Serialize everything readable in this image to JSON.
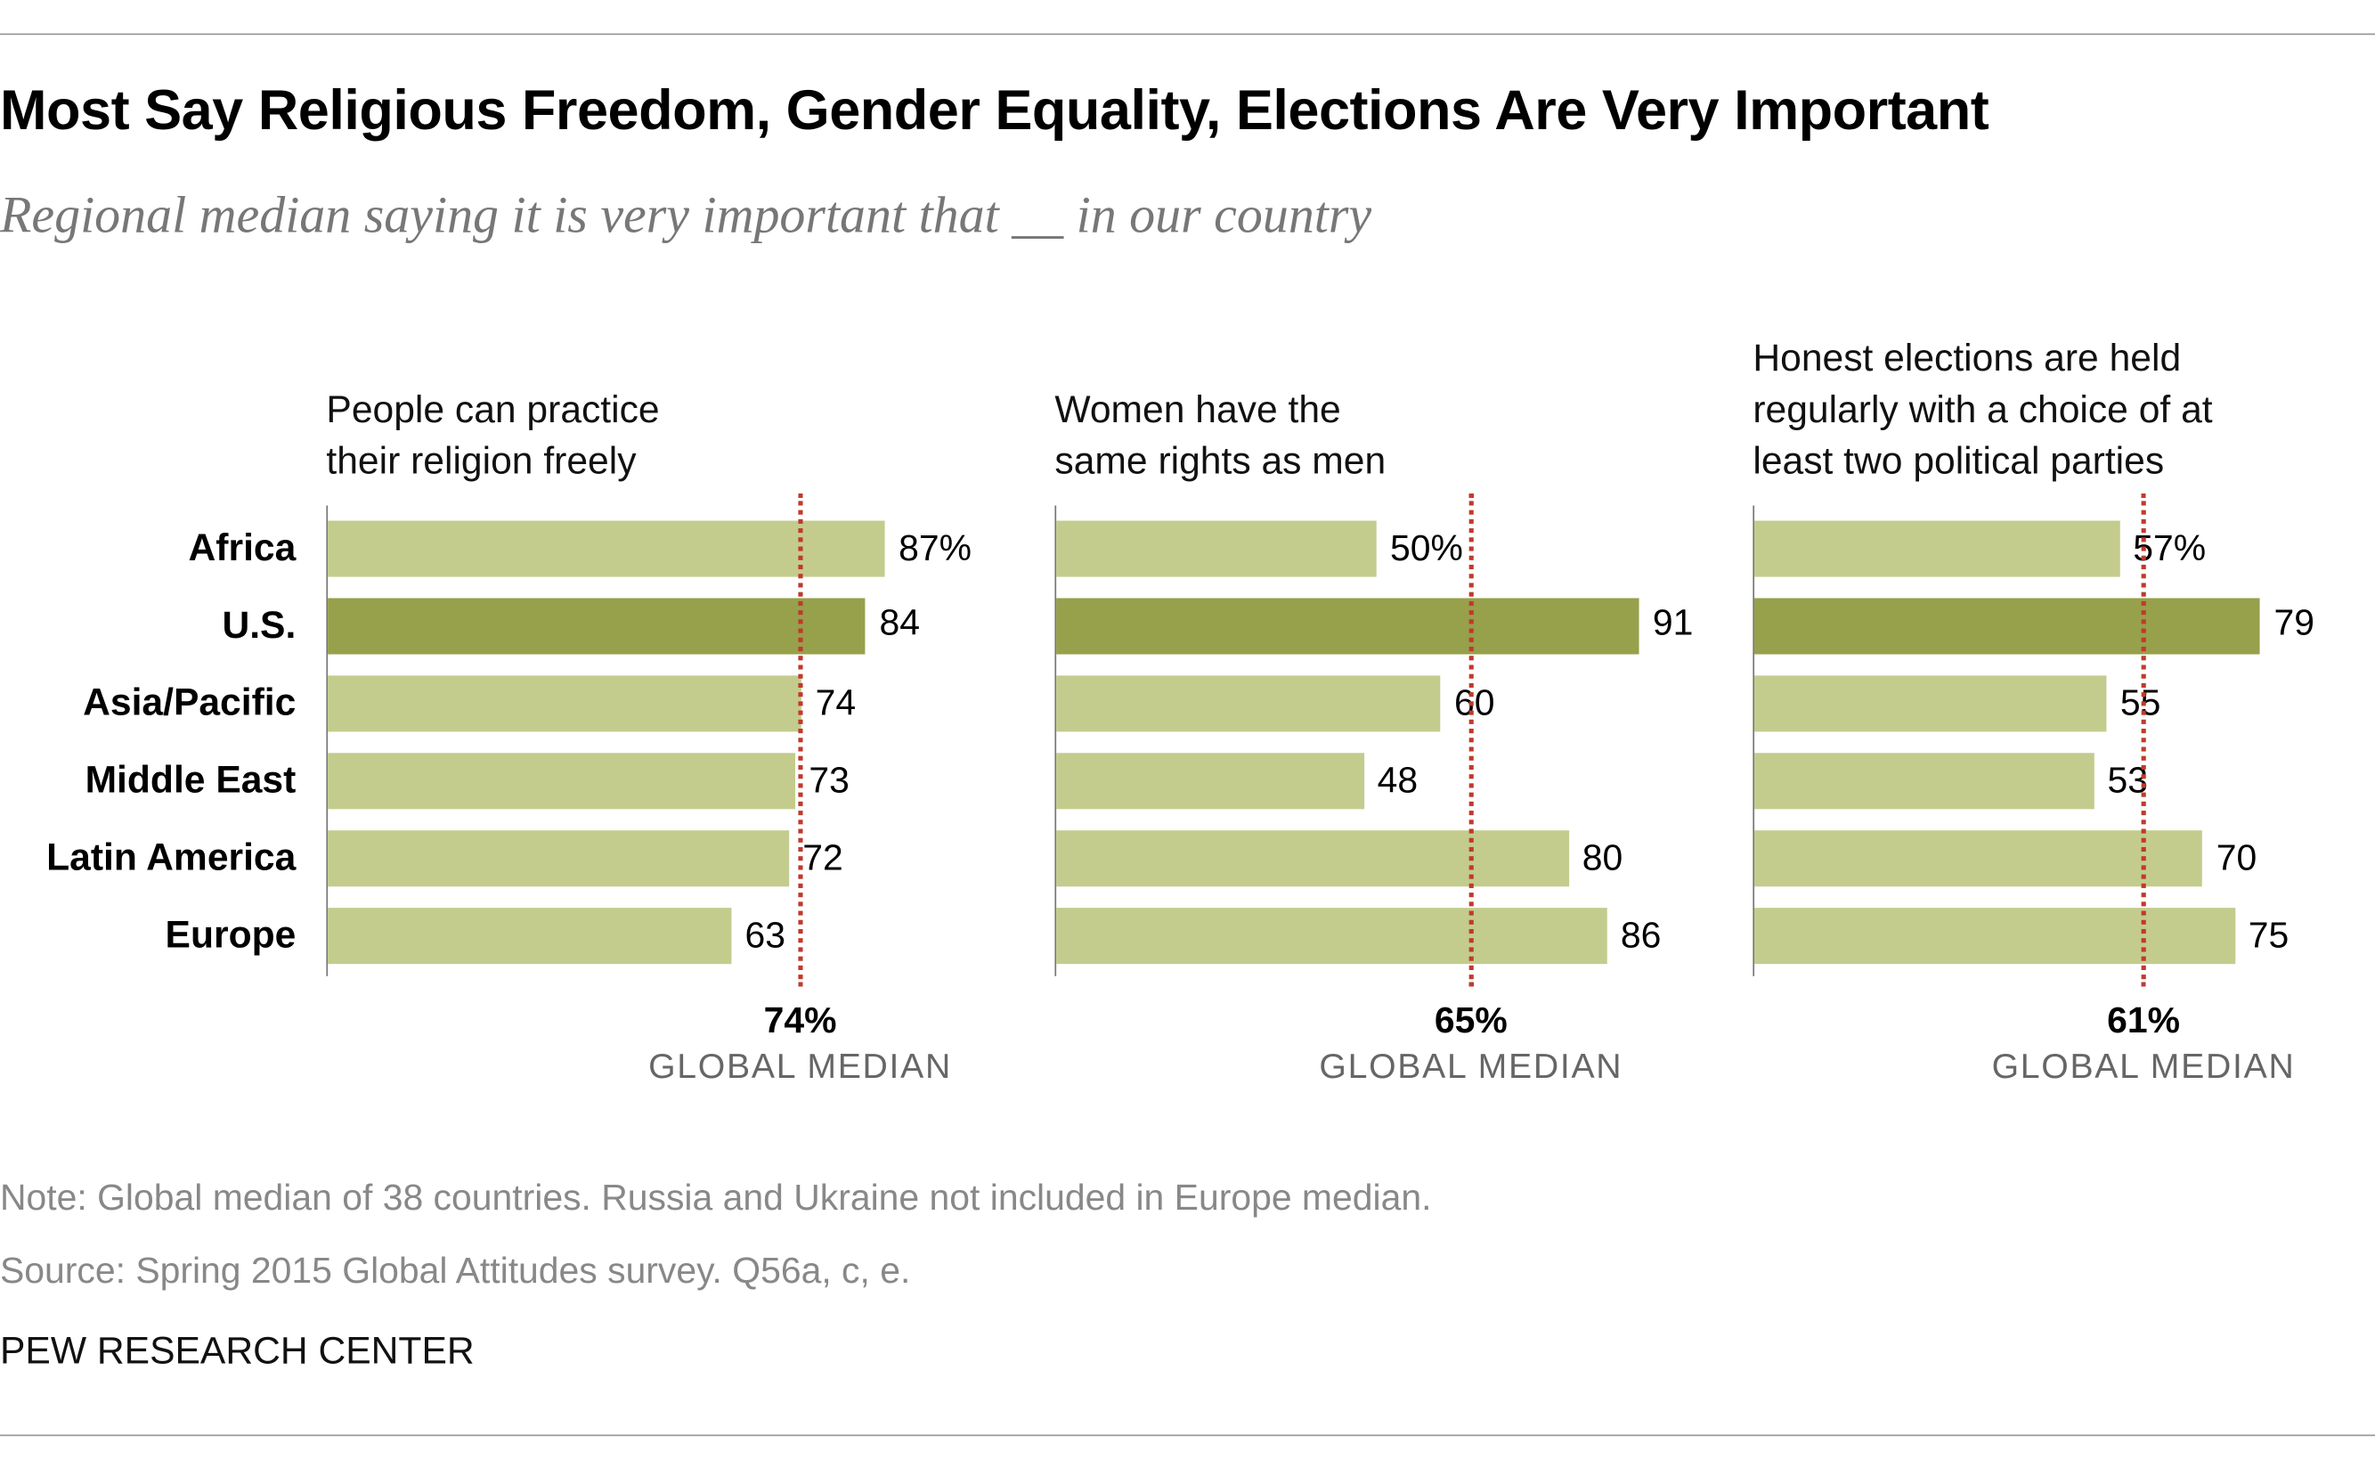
{
  "title": "Most Say Religious Freedom, Gender Equality, Elections Are Very Important",
  "subtitle": "Regional median saying it is very important that __ in our country",
  "colors": {
    "bar": "#c3cc8d",
    "highlight_bar": "#97a04b",
    "median_line": "#c0392b"
  },
  "chart_data": {
    "type": "bar",
    "orientation": "horizontal",
    "categories": [
      "Africa",
      "U.S.",
      "Asia/Pacific",
      "Middle East",
      "Latin America",
      "Europe"
    ],
    "highlight_category": "U.S.",
    "xlim": [
      0,
      100
    ],
    "grid": false,
    "panels": [
      {
        "title_lines": [
          "People can practice",
          "their religion freely"
        ],
        "values": [
          87,
          84,
          74,
          73,
          72,
          63
        ],
        "value_labels": [
          "87%",
          "84",
          "74",
          "73",
          "72",
          "63"
        ],
        "global_median": 74,
        "global_median_label": "74%",
        "median_caption": "GLOBAL MEDIAN"
      },
      {
        "title_lines": [
          "Women have the",
          "same rights as men"
        ],
        "values": [
          50,
          91,
          60,
          48,
          80,
          86
        ],
        "value_labels": [
          "50%",
          "91",
          "60",
          "48",
          "80",
          "86"
        ],
        "global_median": 65,
        "global_median_label": "65%",
        "median_caption": "GLOBAL MEDIAN"
      },
      {
        "title_lines": [
          "Honest elections are held",
          "regularly with a choice of at",
          "least two political parties"
        ],
        "values": [
          57,
          79,
          55,
          53,
          70,
          75
        ],
        "value_labels": [
          "57%",
          "79",
          "55",
          "53",
          "70",
          "75"
        ],
        "global_median": 61,
        "global_median_label": "61%",
        "median_caption": "GLOBAL MEDIAN"
      }
    ]
  },
  "note": "Note: Global median of 38 countries. Russia and Ukraine not included in Europe median.",
  "source": "Source: Spring 2015 Global Attitudes survey. Q56a, c, e.",
  "brand": "PEW RESEARCH CENTER"
}
